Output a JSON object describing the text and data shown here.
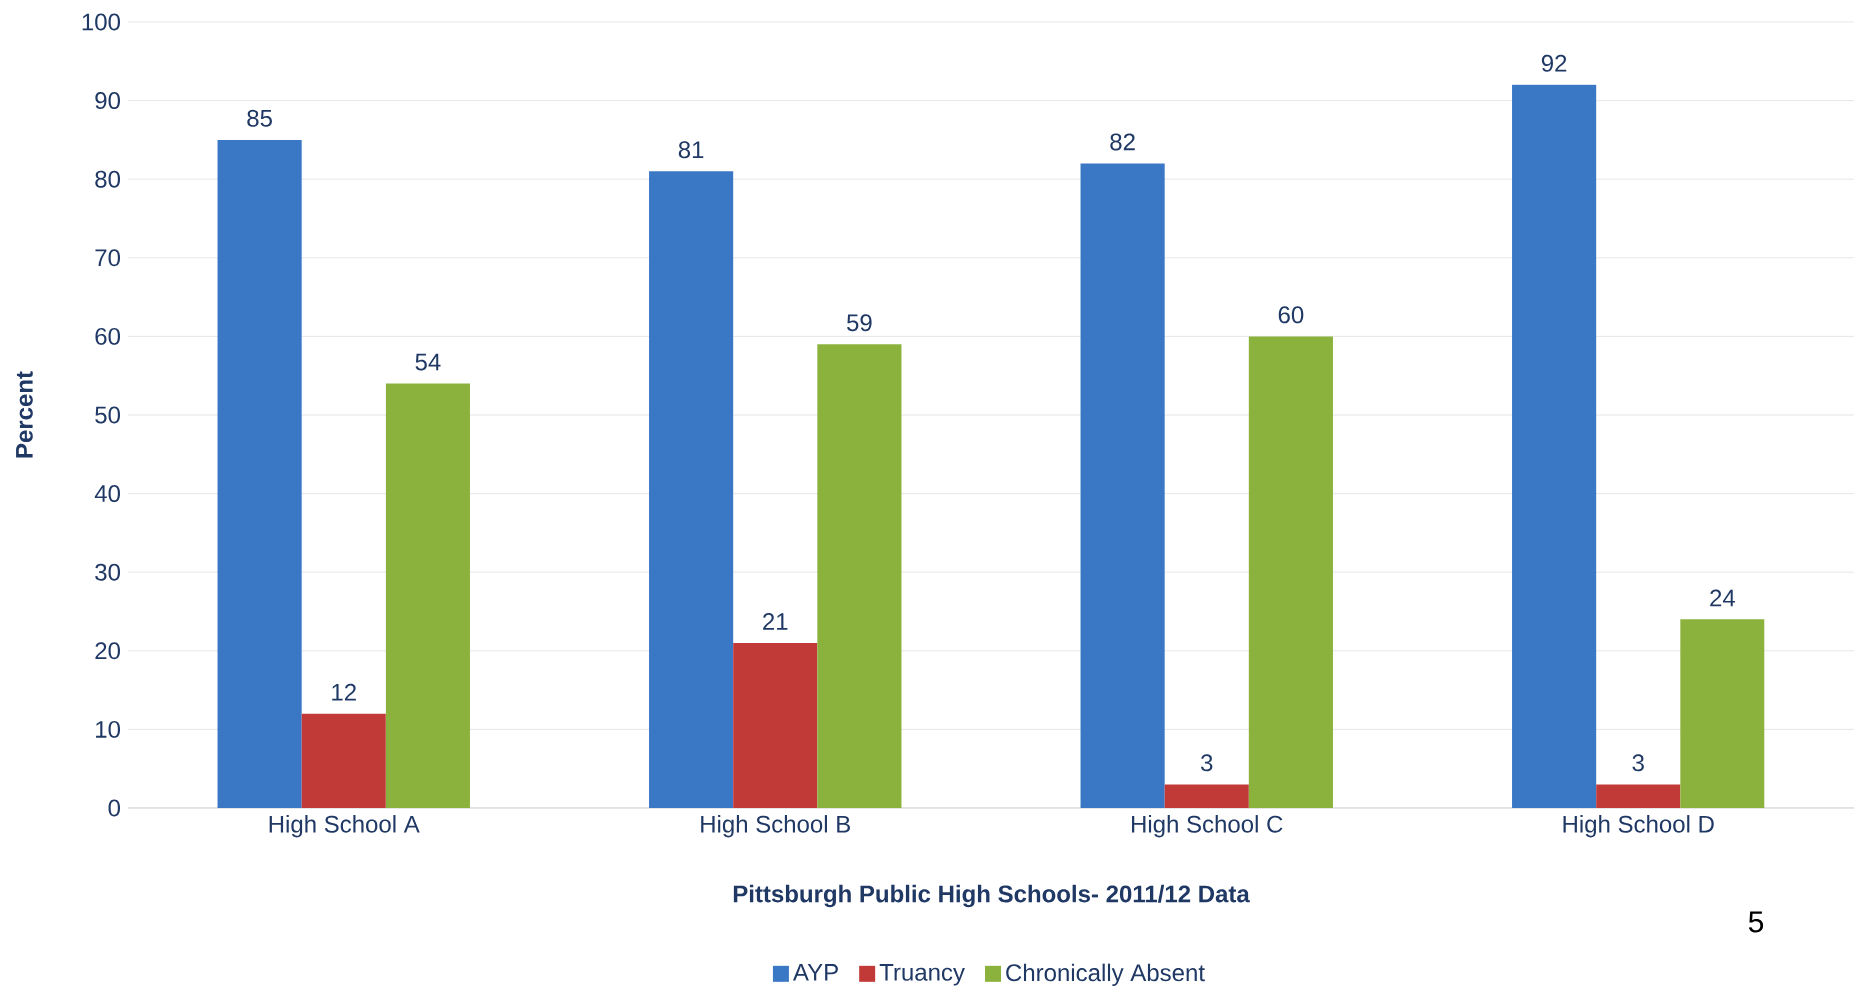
{
  "chart_data": {
    "type": "bar",
    "xlabel": "Pittsburgh Public High Schools- 2011/12 Data",
    "ylabel": "Percent",
    "categories": [
      "High School A",
      "High School B",
      "High School C",
      "High School D"
    ],
    "series": [
      {
        "name": "AYP",
        "color": "#3a78c6",
        "values": [
          85,
          81,
          82,
          92
        ]
      },
      {
        "name": "Truancy",
        "color": "#c23a38",
        "values": [
          12,
          21,
          3,
          3
        ]
      },
      {
        "name": "Chronically Absent",
        "color": "#8cb23e",
        "values": [
          54,
          59,
          60,
          24
        ]
      }
    ],
    "ylim": [
      0,
      100
    ],
    "yticks": [
      0,
      10,
      20,
      30,
      40,
      50,
      60,
      70,
      80,
      90,
      100
    ],
    "grid": "y",
    "legend": "bottom",
    "data_labels": true,
    "annotations": [
      "5"
    ]
  }
}
